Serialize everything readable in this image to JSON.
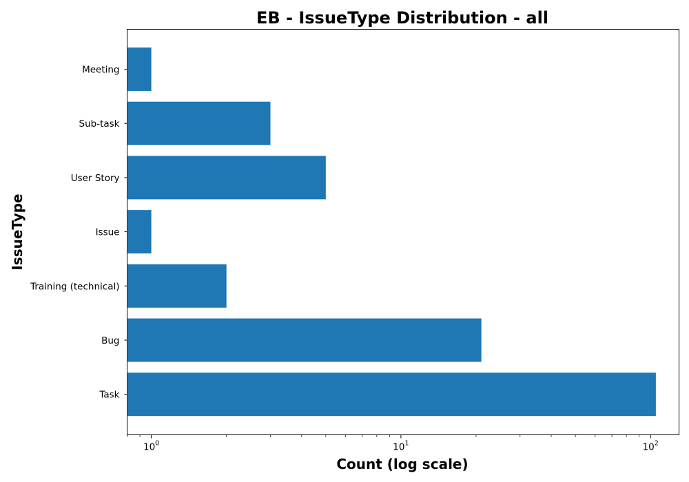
{
  "chart_data": {
    "type": "bar",
    "orientation": "horizontal",
    "title": "EB - IssueType Distribution - all",
    "xlabel": "Count (log scale)",
    "ylabel": "IssueType",
    "x_scale": "log",
    "xlim": [
      0.8,
      130
    ],
    "x_ticks": [
      {
        "value": 1,
        "base": "10",
        "exp": "0"
      },
      {
        "value": 10,
        "base": "10",
        "exp": "1"
      },
      {
        "value": 100,
        "base": "10",
        "exp": "2"
      }
    ],
    "categories": [
      "Task",
      "Bug",
      "Training (technical)",
      "Issue",
      "User Story",
      "Sub-task",
      "Meeting"
    ],
    "values": [
      105,
      21,
      2,
      1,
      5,
      3,
      1
    ],
    "bar_color": "#1f77b4",
    "grid": false,
    "legend": "none"
  }
}
